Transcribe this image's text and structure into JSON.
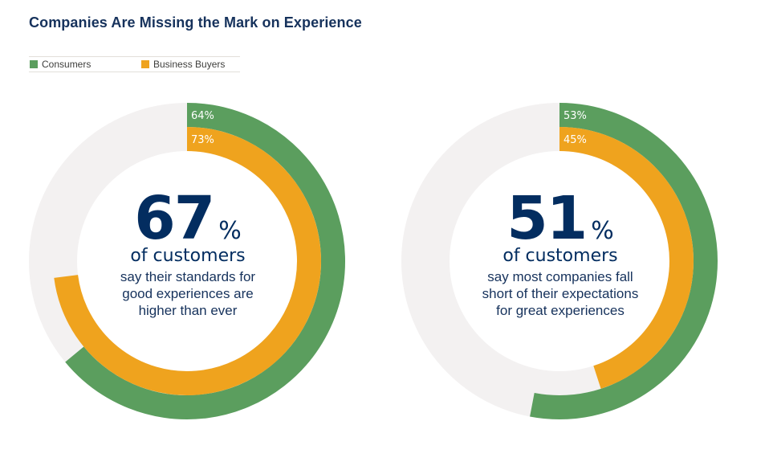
{
  "title": "Companies Are Missing the Mark on Experience",
  "legend": [
    {
      "label": "Consumers",
      "color": "#5b9e5e"
    },
    {
      "label": "Business Buyers",
      "color": "#efa31e"
    }
  ],
  "colors": {
    "track": "#f3f1f1",
    "consumers": "#5b9e5e",
    "business_buyers": "#efa31e",
    "text_dark": "#032d60"
  },
  "charts": [
    {
      "big_number": "67",
      "percent_sign": "%",
      "headline": "of customers",
      "description_lines": [
        "say their standards for",
        "good experiences are",
        "higher than ever"
      ]
    },
    {
      "big_number": "51",
      "percent_sign": "%",
      "headline": "of customers",
      "description_lines": [
        "say most companies fall",
        "short of their expectations",
        "for great experiences"
      ]
    }
  ],
  "chart_data": [
    {
      "type": "pie",
      "style": "concentric-donut",
      "series": [
        {
          "name": "Consumers",
          "value": 64,
          "label": "64%"
        },
        {
          "name": "Business Buyers",
          "value": 73,
          "label": "73%"
        }
      ]
    },
    {
      "type": "pie",
      "style": "concentric-donut",
      "series": [
        {
          "name": "Consumers",
          "value": 53,
          "label": "53%"
        },
        {
          "name": "Business Buyers",
          "value": 45,
          "label": "45%"
        }
      ]
    }
  ]
}
